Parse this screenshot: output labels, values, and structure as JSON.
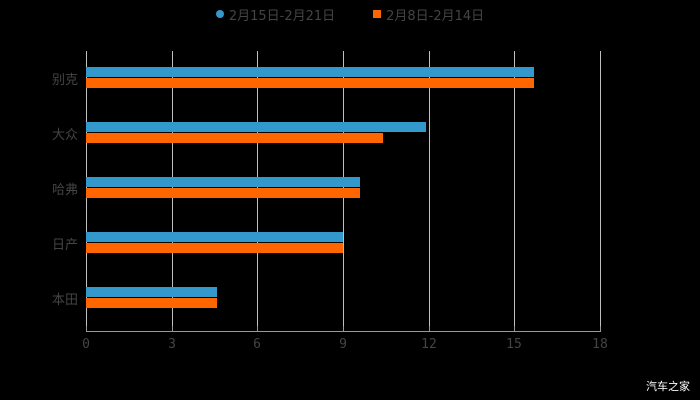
{
  "chart_data": {
    "type": "bar",
    "orientation": "horizontal",
    "title": "",
    "categories": [
      "别克",
      "大众",
      "哈弗",
      "日产",
      "本田"
    ],
    "series": [
      {
        "name": "2月15日-2月21日",
        "color": "#3399cc",
        "values": [
          15.7,
          11.9,
          9.6,
          9.0,
          4.6
        ]
      },
      {
        "name": "2月8日-2月14日",
        "color": "#ff6600",
        "values": [
          15.7,
          10.4,
          9.6,
          9.0,
          4.6
        ]
      }
    ],
    "xlabel": "",
    "ylabel": "",
    "xlim": [
      0,
      18
    ],
    "xticks": [
      "0",
      "3",
      "6",
      "9",
      "12",
      "15",
      "18"
    ],
    "grid": true,
    "legend_position": "top"
  },
  "legend": {
    "items": [
      {
        "label": "2月15日-2月21日",
        "color": "#3399cc",
        "shape": "circle"
      },
      {
        "label": "2月8日-2月14日",
        "color": "#ff6600",
        "shape": "square"
      }
    ]
  },
  "watermark": "汽车之家"
}
